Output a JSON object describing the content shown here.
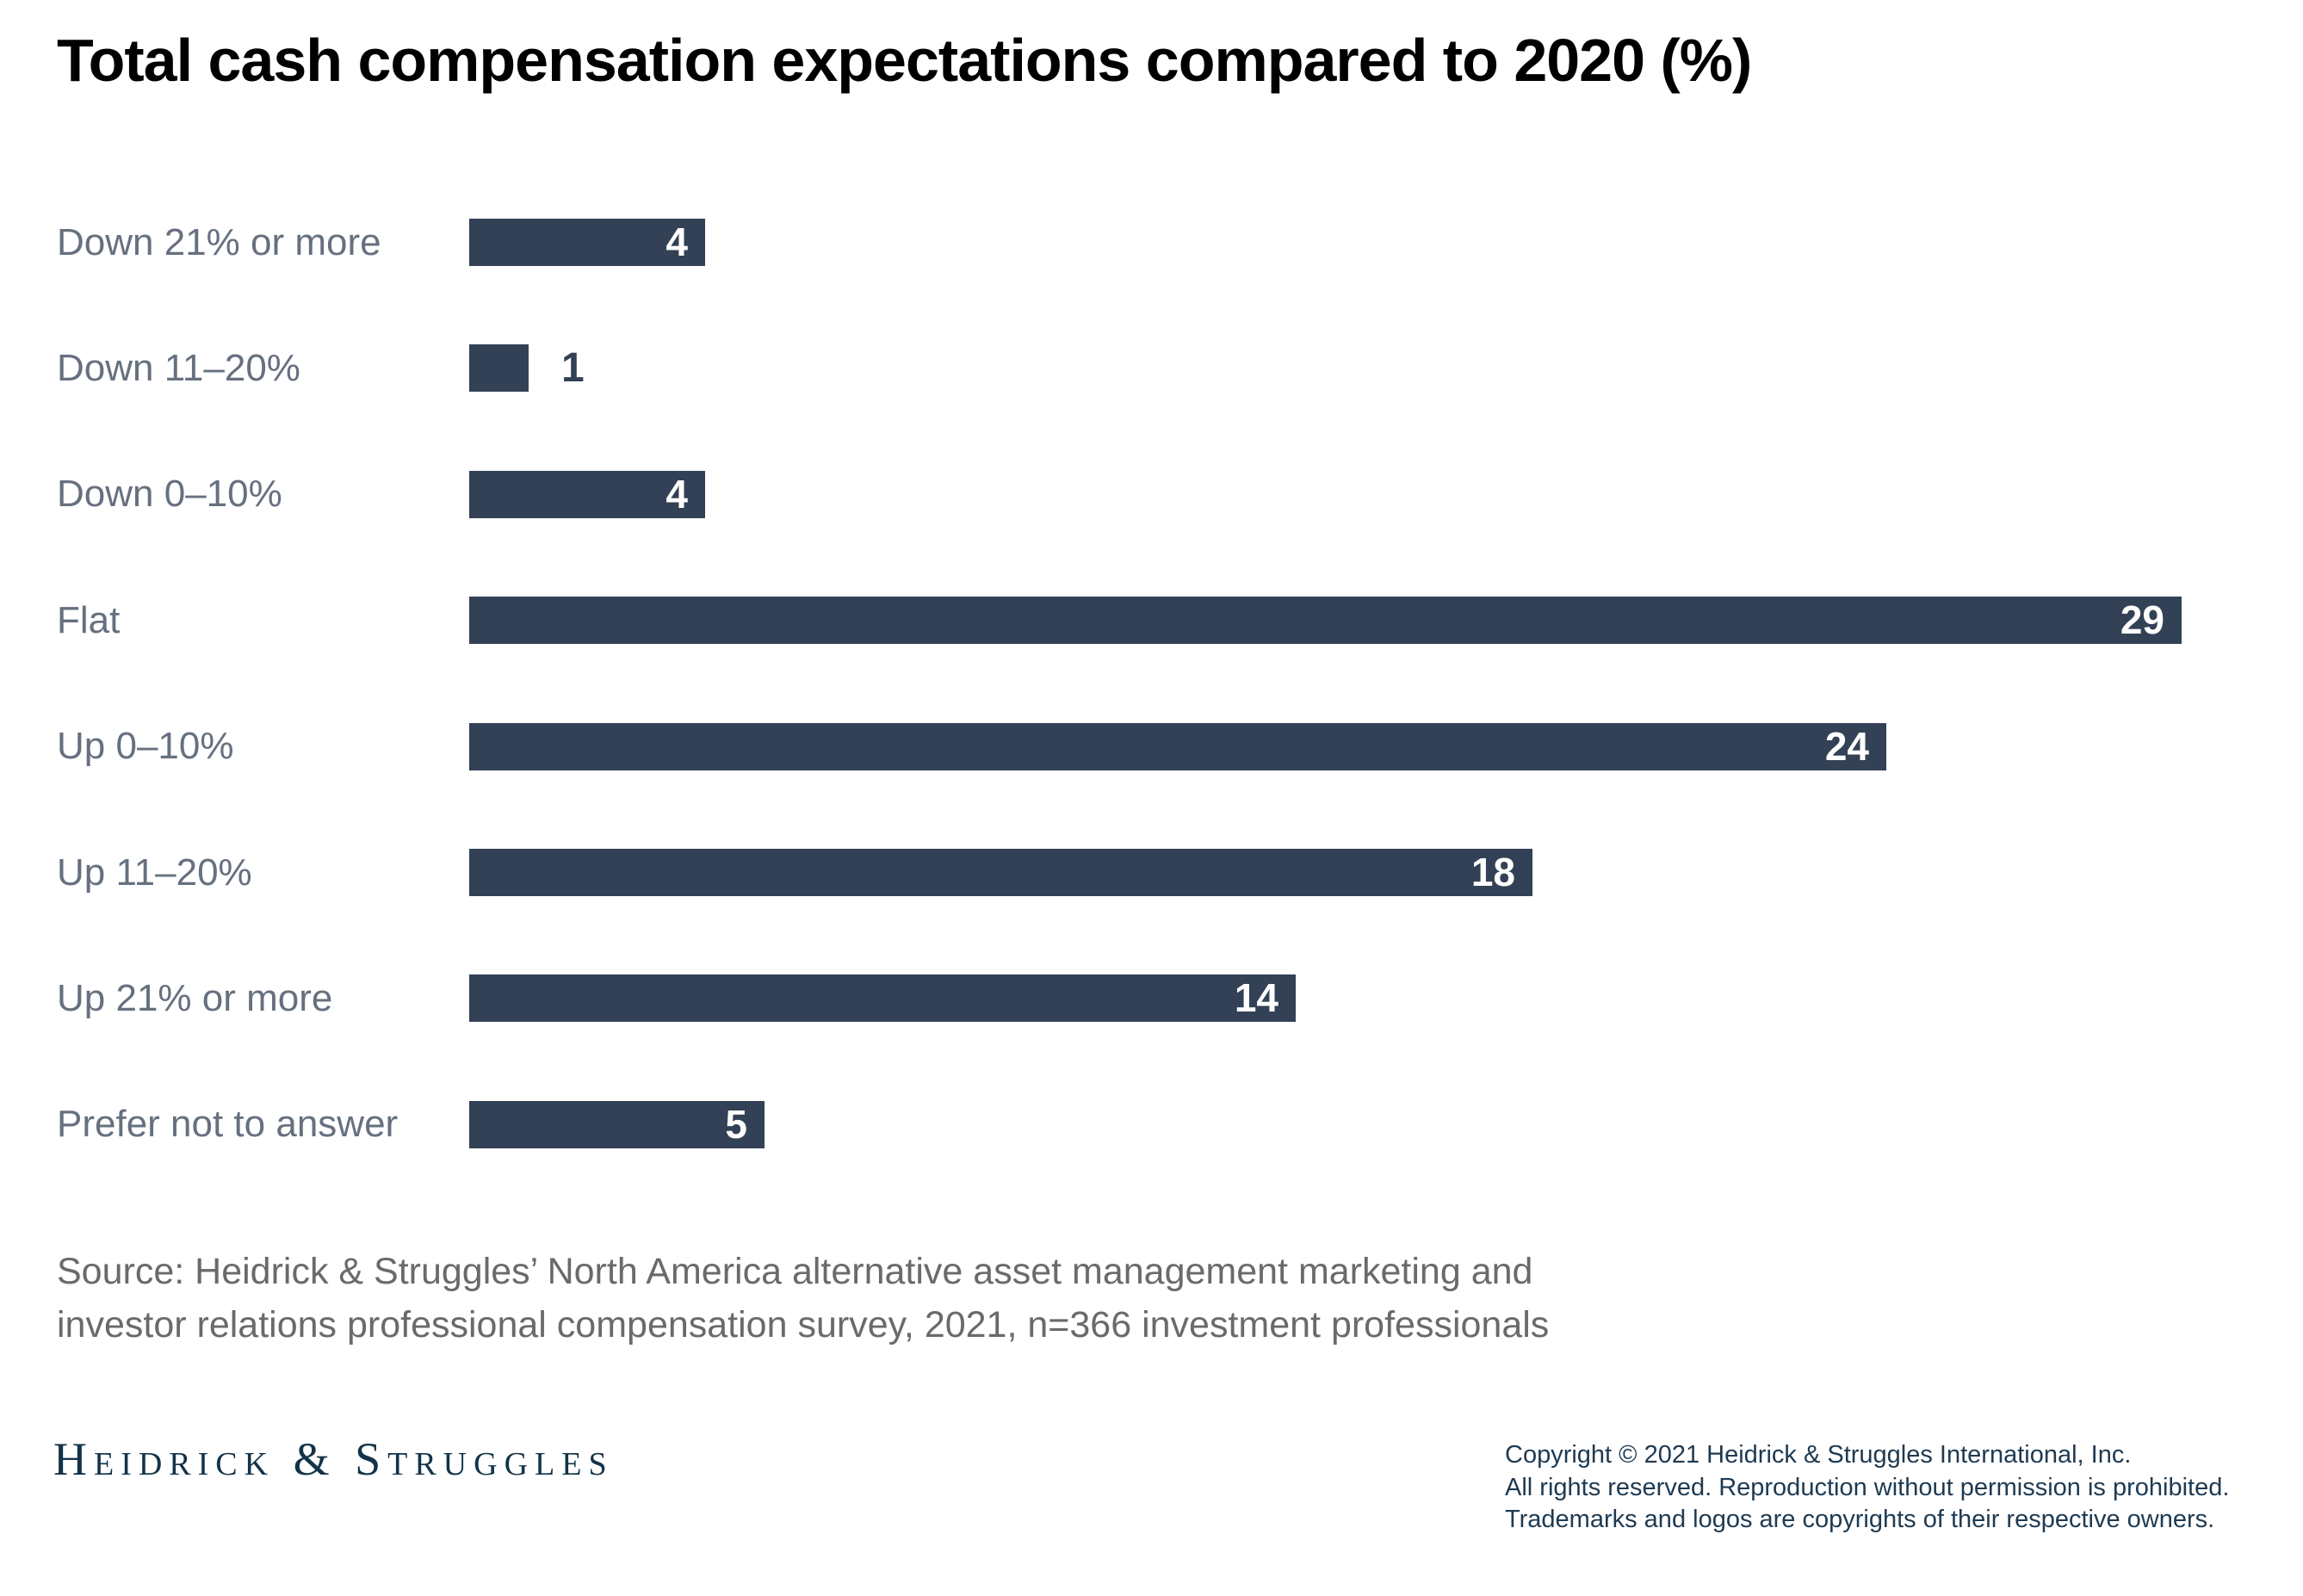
{
  "title": "Total cash compensation expectations compared to 2020 (%)",
  "chart_data": {
    "type": "bar",
    "orientation": "horizontal",
    "title": "Total cash compensation expectations compared to 2020 (%)",
    "categories": [
      "Down 21% or more",
      "Down 11–20%",
      "Down 0–10%",
      "Flat",
      "Up 0–10%",
      "Up 11–20%",
      "Up 21% or more",
      "Prefer not to answer"
    ],
    "values": [
      4,
      1,
      4,
      29,
      24,
      18,
      14,
      5
    ],
    "xlabel": "",
    "ylabel": "",
    "xlim": [
      0,
      29
    ],
    "grid": false,
    "legend": false,
    "value_labels": "shown at end of each bar; inside bar in white except smallest value shown outside in navy",
    "bar_color": "#334156",
    "label_color": "#66707f",
    "value_inside_color": "#ffffff",
    "value_outside_color": "#334156"
  },
  "source": {
    "lines": [
      "Source: Heidrick & Struggles’ North America alternative asset management marketing and",
      "investor relations professional compensation survey, 2021, n=366 investment professionals"
    ]
  },
  "footer": {
    "logo_text": "Heidrick & Struggles",
    "copyright_lines": [
      "Copyright © 2021 Heidrick & Struggles International, Inc.",
      "All rights reserved. Reproduction without permission is prohibited.",
      "Trademarks and logos are copyrights of their respective owners."
    ]
  }
}
